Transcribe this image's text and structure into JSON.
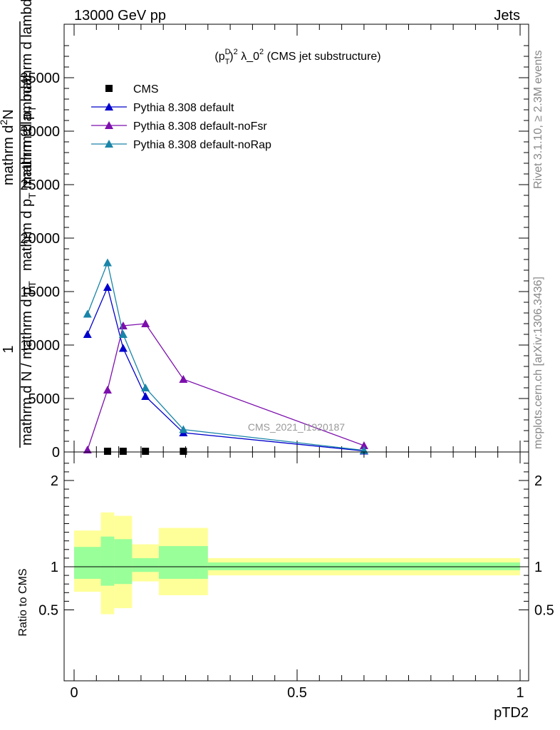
{
  "header": {
    "left": "13000 GeV pp",
    "right": "Jets"
  },
  "side": {
    "rivet": "Rivet 3.1.10, ≥ 2.3M events",
    "mcplots": "mcplots.cern.ch [arXiv:1306.3436]"
  },
  "chart_data": [
    {
      "type": "line",
      "panel": "main",
      "title": "(p_T^D)^2 λ_0^2 (CMS jet substructure)",
      "title_parts": {
        "p": "(p",
        "sup1": "D",
        "sub1": "T",
        "close": ")",
        "sup2": "2",
        "lambda": " λ_0",
        "sup3": "2",
        "rest": " (CMS jet substructure)"
      },
      "watermark": "CMS_2021_I1920187",
      "ylabel_lines": [
        "1",
        "mathrm d N / mathrm d p_T mathrm d p_T mathrm d lambda",
        "mathrm d N",
        "mathrm d p_T mathrm d lambda"
      ],
      "ylabel_parts": {
        "a": "1",
        "b": "mathrm d N / mathrm d p",
        "b_sub": "T",
        "c": "mathrm d p",
        "c_sub": "T",
        "c_rest": " mathrm d lambda",
        "d": "mathrm d",
        "d_sup": "2",
        "d_rest": "N",
        "e": "mathrm d p",
        "e_sub": "T",
        "e_rest": " mathrm d lambda"
      },
      "xlim": [
        0,
        1
      ],
      "ylim": [
        0,
        40000
      ],
      "yticks": [
        0,
        5000,
        10000,
        15000,
        20000,
        25000,
        30000,
        35000
      ],
      "ytick_labels": [
        "0",
        "5000",
        "10000",
        "15000",
        "20000",
        "25000",
        "30000",
        "35000"
      ],
      "legend_position": "top-left",
      "series": [
        {
          "name": "CMS",
          "marker": "square",
          "color": "#000000",
          "x": [
            0.075,
            0.11,
            0.16,
            0.245
          ],
          "y": [
            0,
            0,
            0,
            0
          ]
        },
        {
          "name": "Pythia 8.308 default",
          "marker": "triangle",
          "color": "#0000cc",
          "x": [
            0.03,
            0.075,
            0.11,
            0.16,
            0.245,
            0.65
          ],
          "y": [
            11000,
            15400,
            9700,
            5200,
            1800,
            100
          ]
        },
        {
          "name": "Pythia 8.308 default-noFsr",
          "marker": "triangle",
          "color": "#7d0fad",
          "x": [
            0.03,
            0.075,
            0.11,
            0.16,
            0.245,
            0.65
          ],
          "y": [
            200,
            5800,
            11800,
            12000,
            6800,
            600
          ]
        },
        {
          "name": "Pythia 8.308 default-noRap",
          "marker": "triangle",
          "color": "#1a85a8",
          "x": [
            0.03,
            0.075,
            0.11,
            0.16,
            0.245,
            0.65
          ],
          "y": [
            12900,
            17700,
            11000,
            6000,
            2100,
            150
          ]
        }
      ]
    },
    {
      "type": "area",
      "panel": "ratio",
      "ylabel": "Ratio to CMS",
      "xlabel": "pTD2",
      "xlim": [
        0,
        1
      ],
      "ylim": [
        0.35,
        2.3
      ],
      "yticks": [
        0.5,
        1,
        2
      ],
      "ytick_labels": [
        "0.5",
        "1",
        "2"
      ],
      "xticks": [
        0,
        0.5,
        1
      ],
      "xtick_labels": [
        "0",
        "0.5",
        "1"
      ],
      "bins": [
        {
          "x0": 0.0,
          "x1": 0.06,
          "green": [
            0.86,
            1.23
          ],
          "yellow": [
            0.71,
            1.42
          ]
        },
        {
          "x0": 0.06,
          "x1": 0.09,
          "green": [
            0.78,
            1.35
          ],
          "yellow": [
            0.45,
            1.63
          ]
        },
        {
          "x0": 0.09,
          "x1": 0.13,
          "green": [
            0.8,
            1.32
          ],
          "yellow": [
            0.52,
            1.59
          ]
        },
        {
          "x0": 0.13,
          "x1": 0.19,
          "green": [
            0.94,
            1.1
          ],
          "yellow": [
            0.83,
            1.26
          ]
        },
        {
          "x0": 0.19,
          "x1": 0.3,
          "green": [
            0.86,
            1.24
          ],
          "yellow": [
            0.67,
            1.45
          ]
        },
        {
          "x0": 0.3,
          "x1": 1.0,
          "green": [
            0.96,
            1.05
          ],
          "yellow": [
            0.9,
            1.1
          ]
        }
      ],
      "reference": 1
    }
  ]
}
